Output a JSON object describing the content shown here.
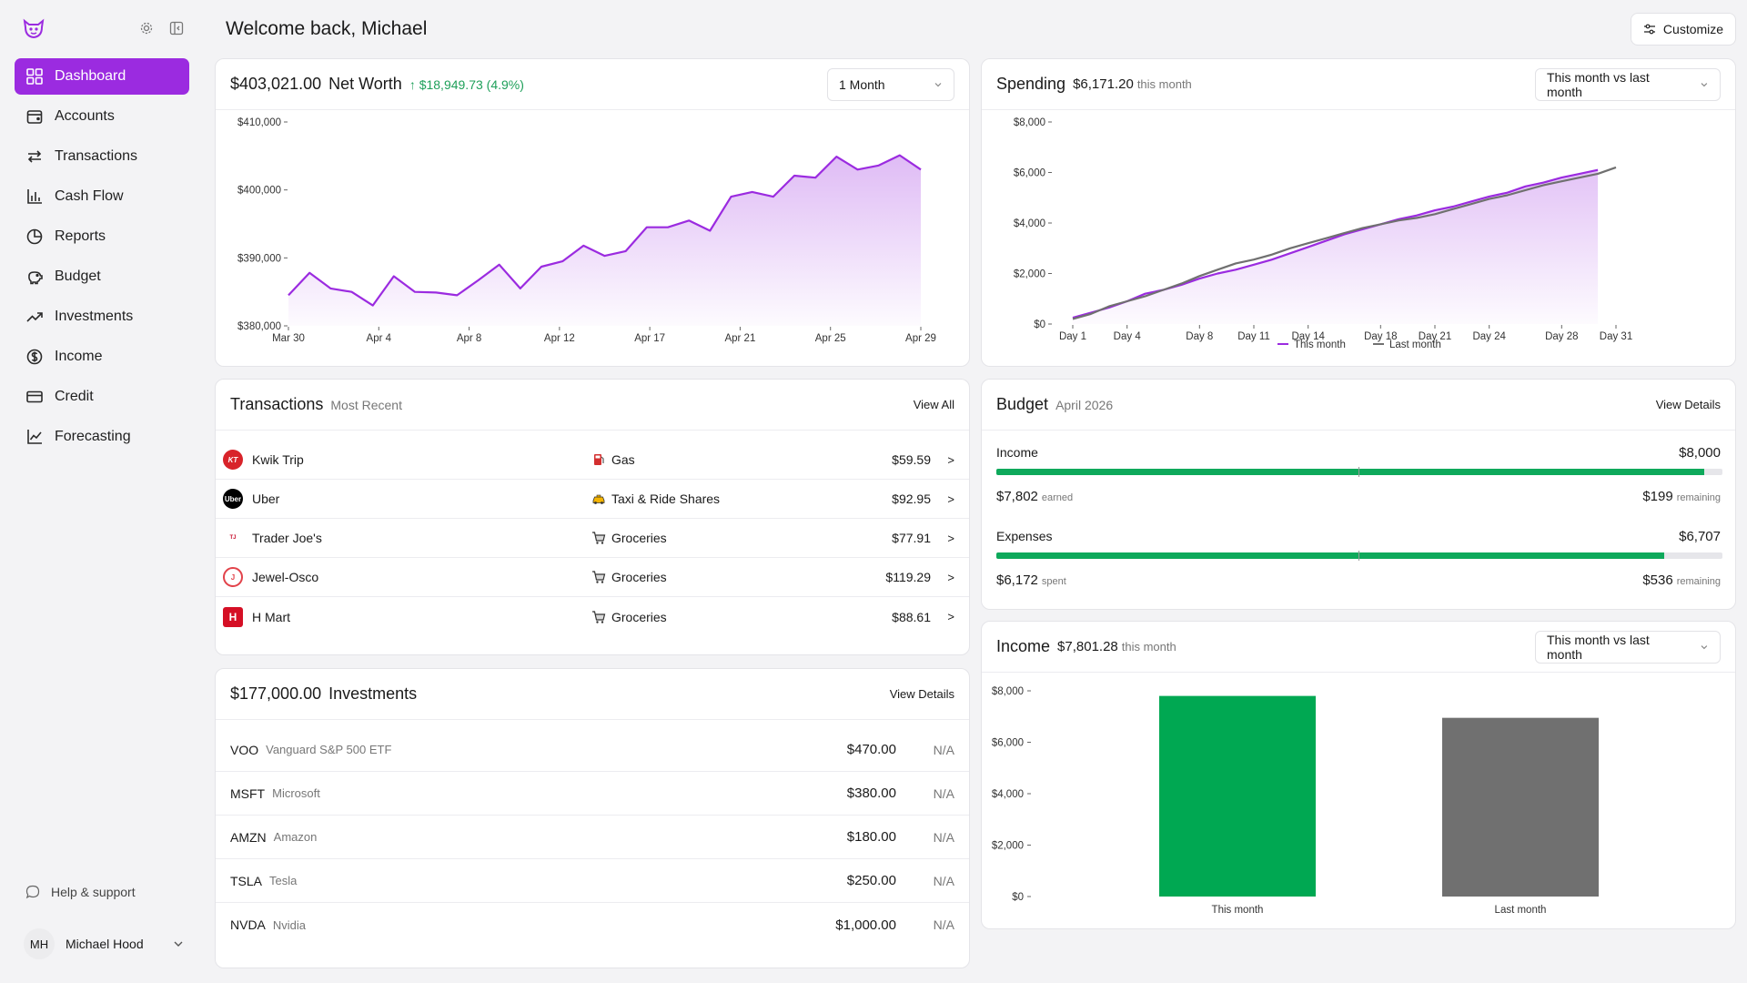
{
  "sidebar": {
    "nav": [
      {
        "label": "Dashboard",
        "icon": "grid-icon",
        "active": true
      },
      {
        "label": "Accounts",
        "icon": "wallet-icon"
      },
      {
        "label": "Transactions",
        "icon": "arrows-swap-icon"
      },
      {
        "label": "Cash Flow",
        "icon": "bar-chart-icon"
      },
      {
        "label": "Reports",
        "icon": "pie-chart-icon"
      },
      {
        "label": "Budget",
        "icon": "piggy-bank-icon"
      },
      {
        "label": "Investments",
        "icon": "trend-up-icon"
      },
      {
        "label": "Income",
        "icon": "dollar-circle-icon"
      },
      {
        "label": "Credit",
        "icon": "credit-card-icon"
      },
      {
        "label": "Forecasting",
        "icon": "line-chart-icon"
      }
    ],
    "help_label": "Help & support",
    "user": {
      "initials": "MH",
      "name": "Michael Hood"
    }
  },
  "header": {
    "welcome": "Welcome back, Michael",
    "customize_label": "Customize"
  },
  "net_worth": {
    "amount": "$403,021.00",
    "title": "Net Worth",
    "change": "↑ $18,949.73 (4.9%)",
    "range": "1 Month",
    "chart_data": {
      "type": "area",
      "x_ticks": [
        "Mar 30",
        "Apr 4",
        "Apr 8",
        "Apr 12",
        "Apr 17",
        "Apr 21",
        "Apr 25",
        "Apr 29"
      ],
      "y_ticks": [
        "$410,000",
        "$400,000",
        "$390,000",
        "$380,000"
      ],
      "ylim": [
        380000,
        410000
      ],
      "values": [
        384500,
        387800,
        385500,
        385000,
        383000,
        387300,
        385000,
        384900,
        384500,
        386700,
        389000,
        385500,
        388700,
        389500,
        391800,
        390300,
        391000,
        394500,
        394500,
        395500,
        394000,
        399000,
        399700,
        399000,
        402100,
        401800,
        404900,
        403000,
        403600,
        405100,
        403000
      ],
      "color": "#9b2be0"
    }
  },
  "spending": {
    "title": "Spending",
    "amount": "$6,171.20",
    "sub": "this month",
    "range": "This month vs last month",
    "chart_data": {
      "type": "line",
      "x_ticks": [
        "Day 1",
        "Day 4",
        "Day 8",
        "Day 11",
        "Day 14",
        "Day 18",
        "Day 21",
        "Day 24",
        "Day 28",
        "Day 31"
      ],
      "y_ticks": [
        "$8,000",
        "$6,000",
        "$4,000",
        "$2,000",
        "$0"
      ],
      "ylim": [
        0,
        8000
      ],
      "series": [
        {
          "name": "This month",
          "color": "#9b2be0",
          "values": [
            250,
            450,
            650,
            900,
            1200,
            1350,
            1550,
            1800,
            2000,
            2150,
            2350,
            2550,
            2800,
            3050,
            3300,
            3550,
            3750,
            3950,
            4150,
            4300,
            4500,
            4650,
            4850,
            5050,
            5200,
            5450,
            5600,
            5800,
            5950,
            6100
          ]
        },
        {
          "name": "Last month",
          "color": "#707070",
          "values": [
            200,
            400,
            700,
            900,
            1100,
            1350,
            1600,
            1900,
            2150,
            2400,
            2550,
            2750,
            3000,
            3200,
            3400,
            3600,
            3800,
            3950,
            4100,
            4200,
            4350,
            4550,
            4750,
            4950,
            5100,
            5300,
            5500,
            5650,
            5800,
            5950,
            6200
          ]
        }
      ]
    }
  },
  "transactions": {
    "title": "Transactions",
    "sub": "Most Recent",
    "link": "View All",
    "rows": [
      {
        "merchant": "Kwik Trip",
        "logo_text": "KT",
        "logo_color": "#d8232a",
        "category": "Gas",
        "cat_icon": "fuel-pump-icon",
        "amount": "$59.59",
        "arrow": ">"
      },
      {
        "merchant": "Uber",
        "logo_text": "Uber",
        "logo_color": "#000000",
        "category": "Taxi & Ride Shares",
        "cat_icon": "taxi-icon",
        "amount": "$92.95",
        "arrow": ">"
      },
      {
        "merchant": "Trader Joe's",
        "logo_text": "TJ",
        "logo_color": "#c8102e",
        "category": "Groceries",
        "cat_icon": "cart-icon",
        "amount": "$77.91",
        "arrow": ">"
      },
      {
        "merchant": "Jewel-Osco",
        "logo_text": "J",
        "logo_color": "#e2434b",
        "category": "Groceries",
        "cat_icon": "cart-icon",
        "amount": "$119.29",
        "arrow": ">"
      },
      {
        "merchant": "H Mart",
        "logo_text": "H",
        "logo_color": "#d50f25",
        "category": "Groceries",
        "cat_icon": "cart-icon",
        "amount": "$88.61",
        "arrow": ">"
      }
    ]
  },
  "budget": {
    "title": "Budget",
    "sub": "April 2026",
    "link": "View Details",
    "income": {
      "label": "Income",
      "total": "$8,000",
      "earned": "$7,802",
      "earned_label": "earned",
      "remaining": "$199",
      "remaining_label": "remaining",
      "fill": 0.975
    },
    "expenses": {
      "label": "Expenses",
      "total": "$6,707",
      "spent": "$6,172",
      "spent_label": "spent",
      "remaining": "$536",
      "remaining_label": "remaining",
      "fill": 0.92
    }
  },
  "investments": {
    "amount": "$177,000.00",
    "title": "Investments",
    "link": "View Details",
    "rows": [
      {
        "ticker": "VOO",
        "name": "Vanguard S&P 500 ETF",
        "value": "$470.00",
        "change": "N/A"
      },
      {
        "ticker": "MSFT",
        "name": "Microsoft",
        "value": "$380.00",
        "change": "N/A"
      },
      {
        "ticker": "AMZN",
        "name": "Amazon",
        "value": "$180.00",
        "change": "N/A"
      },
      {
        "ticker": "TSLA",
        "name": "Tesla",
        "value": "$250.00",
        "change": "N/A"
      },
      {
        "ticker": "NVDA",
        "name": "Nvidia",
        "value": "$1,000.00",
        "change": "N/A"
      }
    ]
  },
  "income": {
    "title": "Income",
    "amount": "$7,801.28",
    "sub": "this month",
    "range": "This month vs last month",
    "chart_data": {
      "type": "bar",
      "categories": [
        "This month",
        "Last month"
      ],
      "values": [
        7801.28,
        6950
      ],
      "colors": [
        "#00a852",
        "#707070"
      ],
      "y_ticks": [
        "$8,000",
        "$6,000",
        "$4,000",
        "$2,000",
        "$0"
      ],
      "ylim": [
        0,
        8000
      ]
    }
  }
}
